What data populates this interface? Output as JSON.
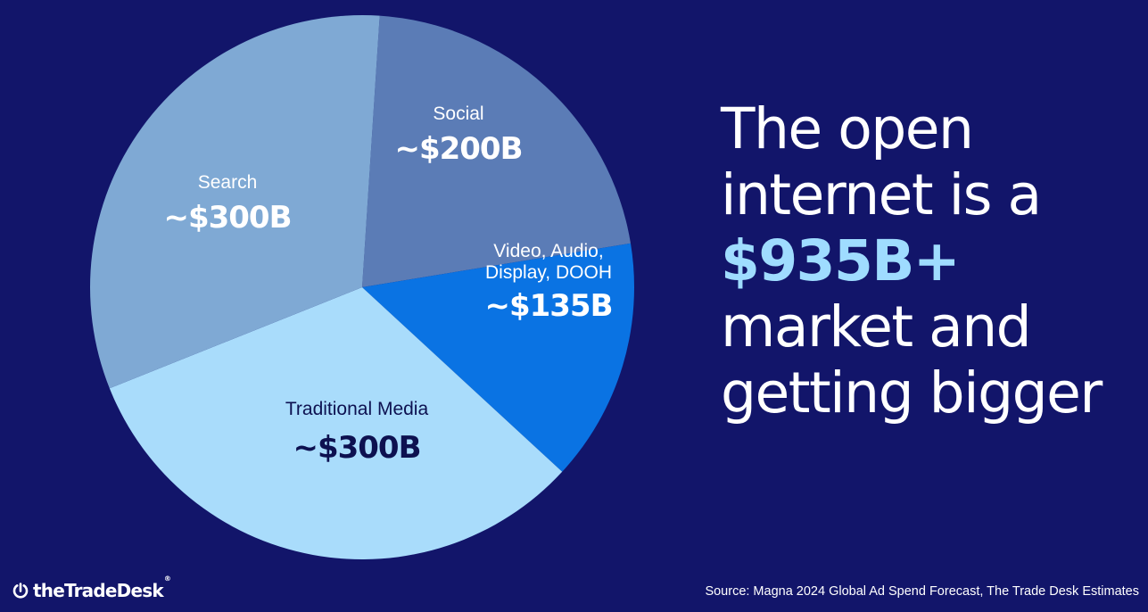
{
  "slide": {
    "background": "#12156a",
    "headline": {
      "line1": "The open",
      "line2": "internet is a",
      "line3": "$935B+",
      "line4": "market and",
      "line5": "getting bigger",
      "accent_color": "#9fdcff"
    },
    "source": "Source: Magna 2024 Global Ad Spend Forecast, The Trade Desk Estimates",
    "logo": {
      "text": "theTradeDesk",
      "trademark": "®",
      "icon": "tradedesk-logo-icon"
    }
  },
  "chart_data": {
    "type": "pie",
    "title": "",
    "unit": "B USD",
    "slices": [
      {
        "name": "Search",
        "label": "~$300B",
        "value": 300,
        "color": "#7fa9d4"
      },
      {
        "name": "Social",
        "label": "~$200B",
        "value": 200,
        "color": "#5b7cb6"
      },
      {
        "name": "Video, Audio, Display, DOOH",
        "name_line1": "Video, Audio,",
        "name_line2": "Display, DOOH",
        "label": "~$135B",
        "value": 135,
        "color": "#0a73e3"
      },
      {
        "name": "Traditional Media",
        "label": "~$300B",
        "value": 300,
        "color": "#a9dcfb"
      }
    ],
    "start_slice": "Social",
    "direction": "clockwise",
    "legend": "none (inline labels)"
  }
}
